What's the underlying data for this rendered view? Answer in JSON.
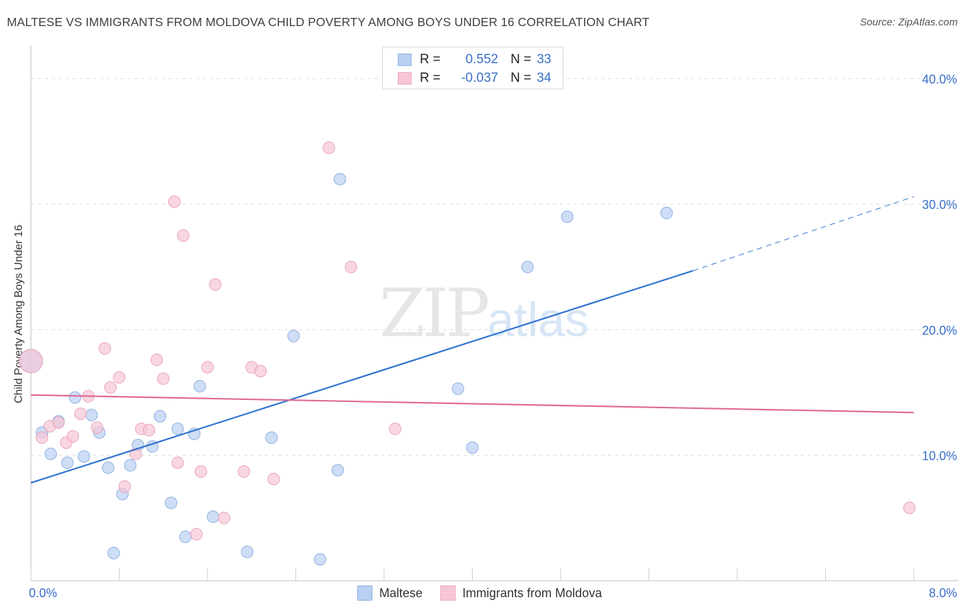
{
  "title": "MALTESE VS IMMIGRANTS FROM MOLDOVA CHILD POVERTY AMONG BOYS UNDER 16 CORRELATION CHART",
  "source": "Source: ZipAtlas.com",
  "watermark": {
    "zip": "ZIP",
    "atlas": "atlas"
  },
  "legend": {
    "rows": [
      {
        "r_label": "R =",
        "r_value": "0.552",
        "n_label": "N =",
        "n_value": "33"
      },
      {
        "r_label": "R =",
        "r_value": "-0.037",
        "n_label": "N =",
        "n_value": "34"
      }
    ]
  },
  "colors": {
    "blue_fill": "#b8d0f2",
    "blue_stroke": "#8fb0e0",
    "blue_line": "#2f73d0",
    "pink_fill": "#f7c6d6",
    "pink_stroke": "#eaa3bb",
    "pink_line": "#e06a96",
    "grid": "#dddddd",
    "tick_label": "#3a6fc9"
  },
  "chart_data": {
    "type": "scatter",
    "xlabel": "",
    "ylabel": "Child Poverty Among Boys Under 16",
    "xlim": [
      0,
      8
    ],
    "ylim": [
      0,
      42
    ],
    "x_tick_labels": [
      {
        "value": 0,
        "label": "0.0%"
      },
      {
        "value": 8,
        "label": "8.0%"
      }
    ],
    "y_tick_labels": [
      {
        "value": 10,
        "label": "10.0%"
      },
      {
        "value": 20,
        "label": "20.0%"
      },
      {
        "value": 30,
        "label": "30.0%"
      },
      {
        "value": 40,
        "label": "40.0%"
      }
    ],
    "series": [
      {
        "name": "Maltese",
        "color": "#b8d0f2",
        "trend": {
          "x0": 0,
          "y0": 7.8,
          "x1": 6.0,
          "y1": 24.7,
          "dash_to_x": 8.0,
          "dash_to_y": 30.6
        },
        "points": [
          [
            0.0,
            17.5
          ],
          [
            0.1,
            11.8
          ],
          [
            0.18,
            10.1
          ],
          [
            0.25,
            12.7
          ],
          [
            0.33,
            9.4
          ],
          [
            0.4,
            14.6
          ],
          [
            0.48,
            9.9
          ],
          [
            0.55,
            13.2
          ],
          [
            0.62,
            11.8
          ],
          [
            0.7,
            9.0
          ],
          [
            0.75,
            2.2
          ],
          [
            0.83,
            6.9
          ],
          [
            0.9,
            9.2
          ],
          [
            0.97,
            10.8
          ],
          [
            1.1,
            10.7
          ],
          [
            1.17,
            13.1
          ],
          [
            1.27,
            6.2
          ],
          [
            1.33,
            12.1
          ],
          [
            1.4,
            3.5
          ],
          [
            1.48,
            11.7
          ],
          [
            1.53,
            15.5
          ],
          [
            1.65,
            5.1
          ],
          [
            1.96,
            2.3
          ],
          [
            2.18,
            11.4
          ],
          [
            2.38,
            19.5
          ],
          [
            2.62,
            1.7
          ],
          [
            2.78,
            8.8
          ],
          [
            2.8,
            32.0
          ],
          [
            3.87,
            15.3
          ],
          [
            4.0,
            10.6
          ],
          [
            4.5,
            25.0
          ],
          [
            4.86,
            29.0
          ],
          [
            5.76,
            29.3
          ]
        ]
      },
      {
        "name": "Immigrants from Moldova",
        "color": "#f7c6d6",
        "trend": {
          "x0": 0,
          "y0": 14.8,
          "x1": 8.0,
          "y1": 13.4
        },
        "points": [
          [
            0.0,
            17.5
          ],
          [
            0.1,
            11.4
          ],
          [
            0.17,
            12.3
          ],
          [
            0.25,
            12.6
          ],
          [
            0.32,
            11.0
          ],
          [
            0.38,
            11.5
          ],
          [
            0.45,
            13.3
          ],
          [
            0.52,
            14.7
          ],
          [
            0.6,
            12.2
          ],
          [
            0.67,
            18.5
          ],
          [
            0.72,
            15.4
          ],
          [
            0.8,
            16.2
          ],
          [
            0.85,
            7.5
          ],
          [
            0.95,
            10.1
          ],
          [
            1.0,
            12.1
          ],
          [
            1.07,
            12.0
          ],
          [
            1.14,
            17.6
          ],
          [
            1.2,
            16.1
          ],
          [
            1.3,
            30.2
          ],
          [
            1.33,
            9.4
          ],
          [
            1.38,
            27.5
          ],
          [
            1.5,
            3.7
          ],
          [
            1.54,
            8.7
          ],
          [
            1.6,
            17.0
          ],
          [
            1.67,
            23.6
          ],
          [
            1.75,
            5.0
          ],
          [
            1.93,
            8.7
          ],
          [
            2.0,
            17.0
          ],
          [
            2.08,
            16.7
          ],
          [
            2.2,
            8.1
          ],
          [
            2.7,
            34.5
          ],
          [
            2.9,
            25.0
          ],
          [
            3.3,
            12.1
          ],
          [
            7.96,
            5.8
          ]
        ]
      }
    ]
  },
  "bottom_legend": {
    "items": [
      {
        "label": "Maltese"
      },
      {
        "label": "Immigrants from Moldova"
      }
    ]
  }
}
